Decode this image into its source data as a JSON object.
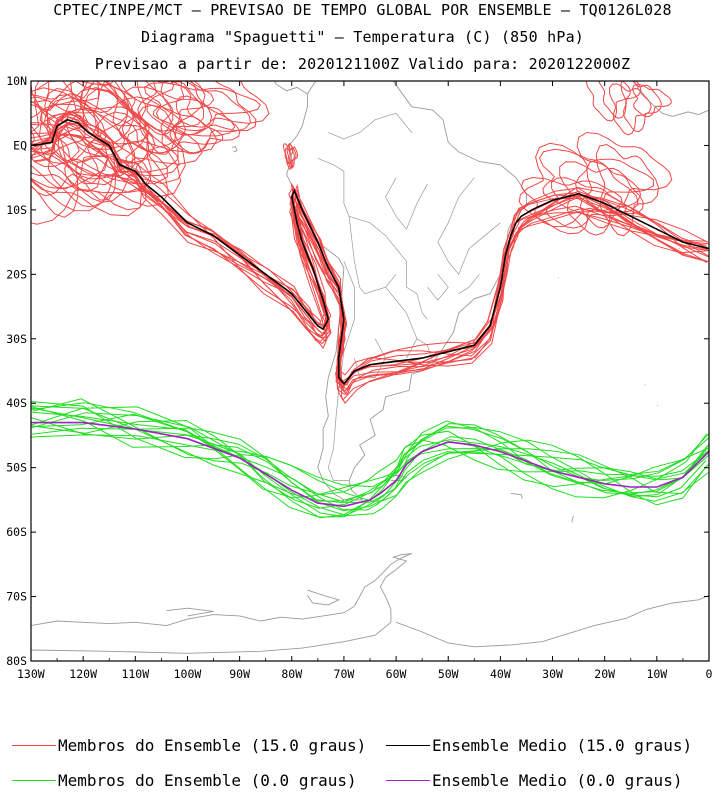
{
  "header": {
    "line1": "CPTEC/INPE/MCT – PREVISAO DE TEMPO GLOBAL POR ENSEMBLE – TQ0126L028",
    "line2": "Diagrama \"Spaguetti\" – Temperatura (C) (850 hPa)",
    "line3": "Previsao a partir de: 2020121100Z  Valido para: 2020122000Z"
  },
  "axes": {
    "lat_labels": [
      "10N",
      "EQ",
      "10S",
      "20S",
      "30S",
      "40S",
      "50S",
      "60S",
      "70S",
      "80S"
    ],
    "lat_values": [
      10,
      0,
      -10,
      -20,
      -30,
      -40,
      -50,
      -60,
      -70,
      -80
    ],
    "lon_labels": [
      "130W",
      "120W",
      "110W",
      "100W",
      "90W",
      "80W",
      "70W",
      "60W",
      "50W",
      "40W",
      "30W",
      "20W",
      "10W",
      "0"
    ],
    "lon_values": [
      -130,
      -120,
      -110,
      -100,
      -90,
      -80,
      -70,
      -60,
      -50,
      -40,
      -30,
      -20,
      -10,
      0
    ],
    "lat_range": [
      -80,
      10
    ],
    "lon_range": [
      -130,
      0
    ]
  },
  "legend": {
    "members_15": "Membros do Ensemble (15.0 graus)",
    "mean_15": "Ensemble Medio (15.0 graus)",
    "members_0": "Membros do Ensemble (0.0 graus)",
    "mean_0": "Ensemble Medio (0.0 graus)"
  },
  "colors": {
    "members_15": "#f04848",
    "mean_15": "#000000",
    "members_0": "#22dd22",
    "mean_0": "#a020c0",
    "coastline": "#9a9a9a"
  },
  "chart_data": {
    "type": "line",
    "title": "Diagrama \"Spaguetti\" – Temperatura (C) (850 hPa)",
    "xlabel": "",
    "ylabel": "",
    "xlim": [
      -130,
      0
    ],
    "ylim": [
      -80,
      10
    ],
    "series": [
      {
        "name": "Ensemble Medio (15.0 graus)",
        "lon": [
          -130,
          -128,
          -126,
          -125,
          -123,
          -121,
          -119,
          -117,
          -115,
          -113,
          -110,
          -108,
          -105,
          -100,
          -95,
          -90,
          -85,
          -80,
          -77,
          -75,
          -74,
          -73,
          -74,
          -76,
          -78,
          -79,
          -80,
          -79.5,
          -78,
          -75,
          -73,
          -71,
          -70,
          -70.5,
          -71,
          -71,
          -70,
          -68,
          -65,
          -60,
          -55,
          -50,
          -45,
          -42,
          -40,
          -39,
          -38,
          -37,
          -36,
          -34,
          -30,
          -25,
          -20,
          -15,
          -10,
          -5,
          0
        ],
        "lat": [
          0,
          0.2,
          0.5,
          3,
          4,
          3.5,
          2,
          1,
          0,
          -3,
          -4,
          -6,
          -8,
          -12,
          -14,
          -17,
          -20,
          -23,
          -26,
          -28,
          -28.5,
          -27,
          -24,
          -19,
          -15,
          -12,
          -8,
          -7,
          -10,
          -15,
          -19,
          -22,
          -27,
          -30,
          -33,
          -36,
          -37,
          -35,
          -34,
          -33.5,
          -33,
          -32,
          -31,
          -28,
          -22,
          -17,
          -14,
          -12,
          -11,
          -10,
          -8.5,
          -7.5,
          -9,
          -11,
          -13,
          -15,
          -16
        ]
      },
      {
        "name": "Ensemble Medio (0.0 graus)",
        "lon": [
          -130,
          -120,
          -110,
          -100,
          -95,
          -90,
          -85,
          -80,
          -75,
          -70,
          -65,
          -63,
          -60,
          -58,
          -55,
          -50,
          -45,
          -40,
          -35,
          -30,
          -25,
          -20,
          -15,
          -10,
          -5,
          0
        ],
        "lat": [
          -43,
          -43,
          -44,
          -45.5,
          -47,
          -48.5,
          -51,
          -53.5,
          -55.5,
          -56,
          -55,
          -54,
          -52,
          -49.5,
          -47.5,
          -46,
          -46.5,
          -47.5,
          -49,
          -50.5,
          -51.5,
          -52.5,
          -53,
          -53,
          -51.5,
          -47.5
        ]
      }
    ]
  }
}
